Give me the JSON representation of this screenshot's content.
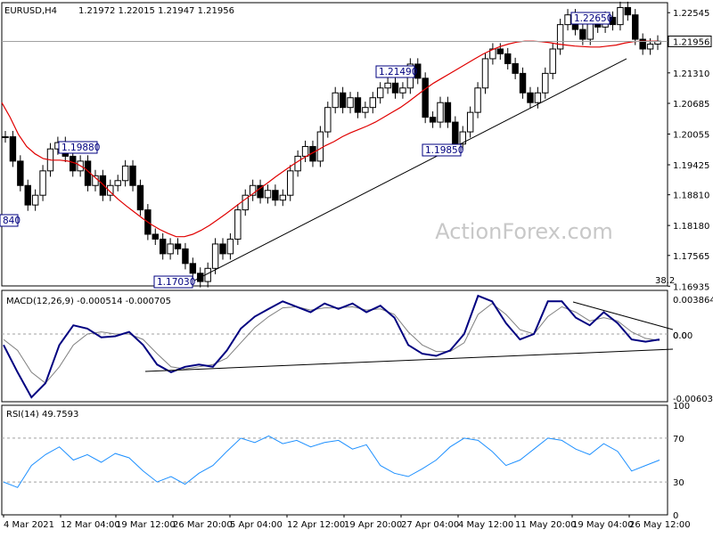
{
  "chart_data": [
    {
      "type": "candlestick",
      "panel": "price",
      "symbol_header": "EURUSD,H4",
      "ohlc_header": "1.21972 1.22015 1.21947 1.21956",
      "current_price_label": "1.21956",
      "y_ticks": [
        "1.22545",
        "1.21956",
        "1.21310",
        "1.20685",
        "1.20055",
        "1.19425",
        "1.18810",
        "1.18180",
        "1.17565",
        "1.16935"
      ],
      "ylim": [
        1.1694,
        1.2275
      ],
      "extra_text": "38.2",
      "left_cut_label": "840",
      "peak_labels": [
        {
          "text": "1.19880",
          "price": 1.1988
        },
        {
          "text": "1.17030",
          "price": 1.1703
        },
        {
          "text": "1.21490",
          "price": 1.2149
        },
        {
          "text": "1.19850",
          "price": 1.1985
        },
        {
          "text": "1.22650",
          "price": 1.2265
        }
      ],
      "watermark": "ActionForex.com",
      "series": [
        {
          "name": "price",
          "values": [
            1.2,
            1.195,
            1.19,
            1.186,
            1.188,
            1.193,
            1.1975,
            1.1988,
            1.196,
            1.193,
            1.195,
            1.19,
            1.192,
            1.188,
            1.19,
            1.191,
            1.194,
            1.19,
            1.185,
            1.18,
            1.179,
            1.176,
            1.178,
            1.177,
            1.174,
            1.172,
            1.1703,
            1.173,
            1.178,
            1.176,
            1.179,
            1.185,
            1.188,
            1.19,
            1.1875,
            1.189,
            1.187,
            1.188,
            1.193,
            1.196,
            1.198,
            1.195,
            1.201,
            1.206,
            1.209,
            1.206,
            1.208,
            1.205,
            1.206,
            1.208,
            1.21,
            1.211,
            1.209,
            1.21,
            1.2149,
            1.212,
            1.204,
            1.203,
            1.207,
            1.203,
            1.1985,
            1.201,
            1.205,
            1.21,
            1.216,
            1.218,
            1.217,
            1.215,
            1.213,
            1.209,
            1.207,
            1.209,
            1.213,
            1.218,
            1.223,
            1.225,
            1.222,
            1.22,
            1.224,
            1.2225,
            1.2245,
            1.223,
            1.2265,
            1.225,
            1.22,
            1.218,
            1.219,
            1.2196
          ]
        },
        {
          "name": "moving-average",
          "values": [
            1.207,
            1.204,
            1.2005,
            1.198,
            1.1965,
            1.1955,
            1.1952,
            1.1952,
            1.195,
            1.1945,
            1.1935,
            1.192,
            1.1905,
            1.1888,
            1.1872,
            1.1858,
            1.1845,
            1.1832,
            1.182,
            1.181,
            1.1802,
            1.1795,
            1.1795,
            1.18,
            1.1808,
            1.1818,
            1.183,
            1.1842,
            1.1855,
            1.1868,
            1.188,
            1.1893,
            1.1905,
            1.1918,
            1.193,
            1.1942,
            1.1953,
            1.1963,
            1.1972,
            1.1982,
            1.199,
            1.2,
            1.2008,
            1.2015,
            1.2022,
            1.203,
            1.204,
            1.205,
            1.206,
            1.2072,
            1.2085,
            1.2098,
            1.211,
            1.212,
            1.213,
            1.214,
            1.215,
            1.216,
            1.217,
            1.2178,
            1.2185,
            1.219,
            1.2194,
            1.2196,
            1.2196,
            1.2195,
            1.2193,
            1.219,
            1.2188,
            1.2186,
            1.2185,
            1.2184,
            1.2184,
            1.2186,
            1.2188,
            1.2192,
            1.2195,
            1.2196,
            1.2196,
            1.2196
          ]
        }
      ]
    },
    {
      "type": "line",
      "panel": "macd",
      "header": "MACD(12,26,9) -0.000514 -0.000705",
      "y_ticks": [
        "0.003864",
        "0.00",
        "0.0",
        "-0.006038"
      ],
      "ylim": [
        -0.0062,
        0.004
      ],
      "series": [
        {
          "name": "macd",
          "values": [
            -0.001,
            -0.0035,
            -0.0058,
            -0.0045,
            -0.001,
            0.0008,
            0.0005,
            -0.0003,
            -0.0002,
            0.0002,
            -0.001,
            -0.0028,
            -0.0035,
            -0.003,
            -0.0028,
            -0.003,
            -0.0015,
            0.0005,
            0.0016,
            0.0023,
            0.003,
            0.0025,
            0.002,
            0.0028,
            0.0023,
            0.0028,
            0.002,
            0.0026,
            0.0015,
            -0.001,
            -0.0018,
            -0.002,
            -0.0015,
            0.0,
            0.0035,
            0.003,
            0.001,
            -0.0005,
            0.0,
            0.003,
            0.003,
            0.0015,
            0.0008,
            0.002,
            0.001,
            -0.0005,
            -0.0007,
            -0.0005
          ]
        },
        {
          "name": "signal",
          "values": [
            -0.0005,
            -0.0015,
            -0.0035,
            -0.0045,
            -0.003,
            -0.001,
            0.0,
            0.0002,
            0.0,
            0.0,
            -0.0005,
            -0.0018,
            -0.003,
            -0.0032,
            -0.003,
            -0.0028,
            -0.0022,
            -0.0008,
            0.0006,
            0.0016,
            0.0024,
            0.0025,
            0.0022,
            0.0024,
            0.0024,
            0.0025,
            0.0022,
            0.0023,
            0.0018,
            0.0002,
            -0.001,
            -0.0016,
            -0.0016,
            -0.0008,
            0.0018,
            0.0028,
            0.0018,
            0.0004,
            0.0,
            0.0016,
            0.0025,
            0.002,
            0.0012,
            0.0015,
            0.0012,
            0.0002,
            -0.0004,
            -0.0006
          ]
        }
      ]
    },
    {
      "type": "line",
      "panel": "rsi",
      "header": "RSI(14) 49.7593",
      "y_ticks": [
        "100",
        "70",
        "30",
        "0"
      ],
      "ylim": [
        0,
        100
      ],
      "series": [
        {
          "name": "rsi",
          "values": [
            30,
            25,
            45,
            55,
            62,
            50,
            55,
            48,
            56,
            52,
            40,
            30,
            35,
            28,
            38,
            45,
            58,
            70,
            66,
            72,
            65,
            68,
            62,
            66,
            68,
            60,
            64,
            45,
            38,
            35,
            42,
            50,
            62,
            70,
            68,
            58,
            45,
            50,
            60,
            70,
            68,
            60,
            55,
            65,
            58,
            40,
            45,
            50
          ]
        }
      ]
    }
  ],
  "x_axis_labels": [
    "4 Mar 2021",
    "12 Mar 04:00",
    "19 Mar 12:00",
    "26 Mar 20:00",
    "5 Apr 04:00",
    "12 Apr 12:00",
    "19 Apr 20:00",
    "27 Apr 04:00",
    "4 May 12:00",
    "11 May 20:00",
    "19 May 04:00",
    "26 May 12:00"
  ],
  "colors": {
    "candle": "#000000",
    "ma": "#e00000",
    "macd": "#000080",
    "signal": "#808080",
    "rsi": "#1e90ff",
    "label_border": "#000080",
    "trendline": "#000000",
    "dashed": "#a0a0a0"
  }
}
